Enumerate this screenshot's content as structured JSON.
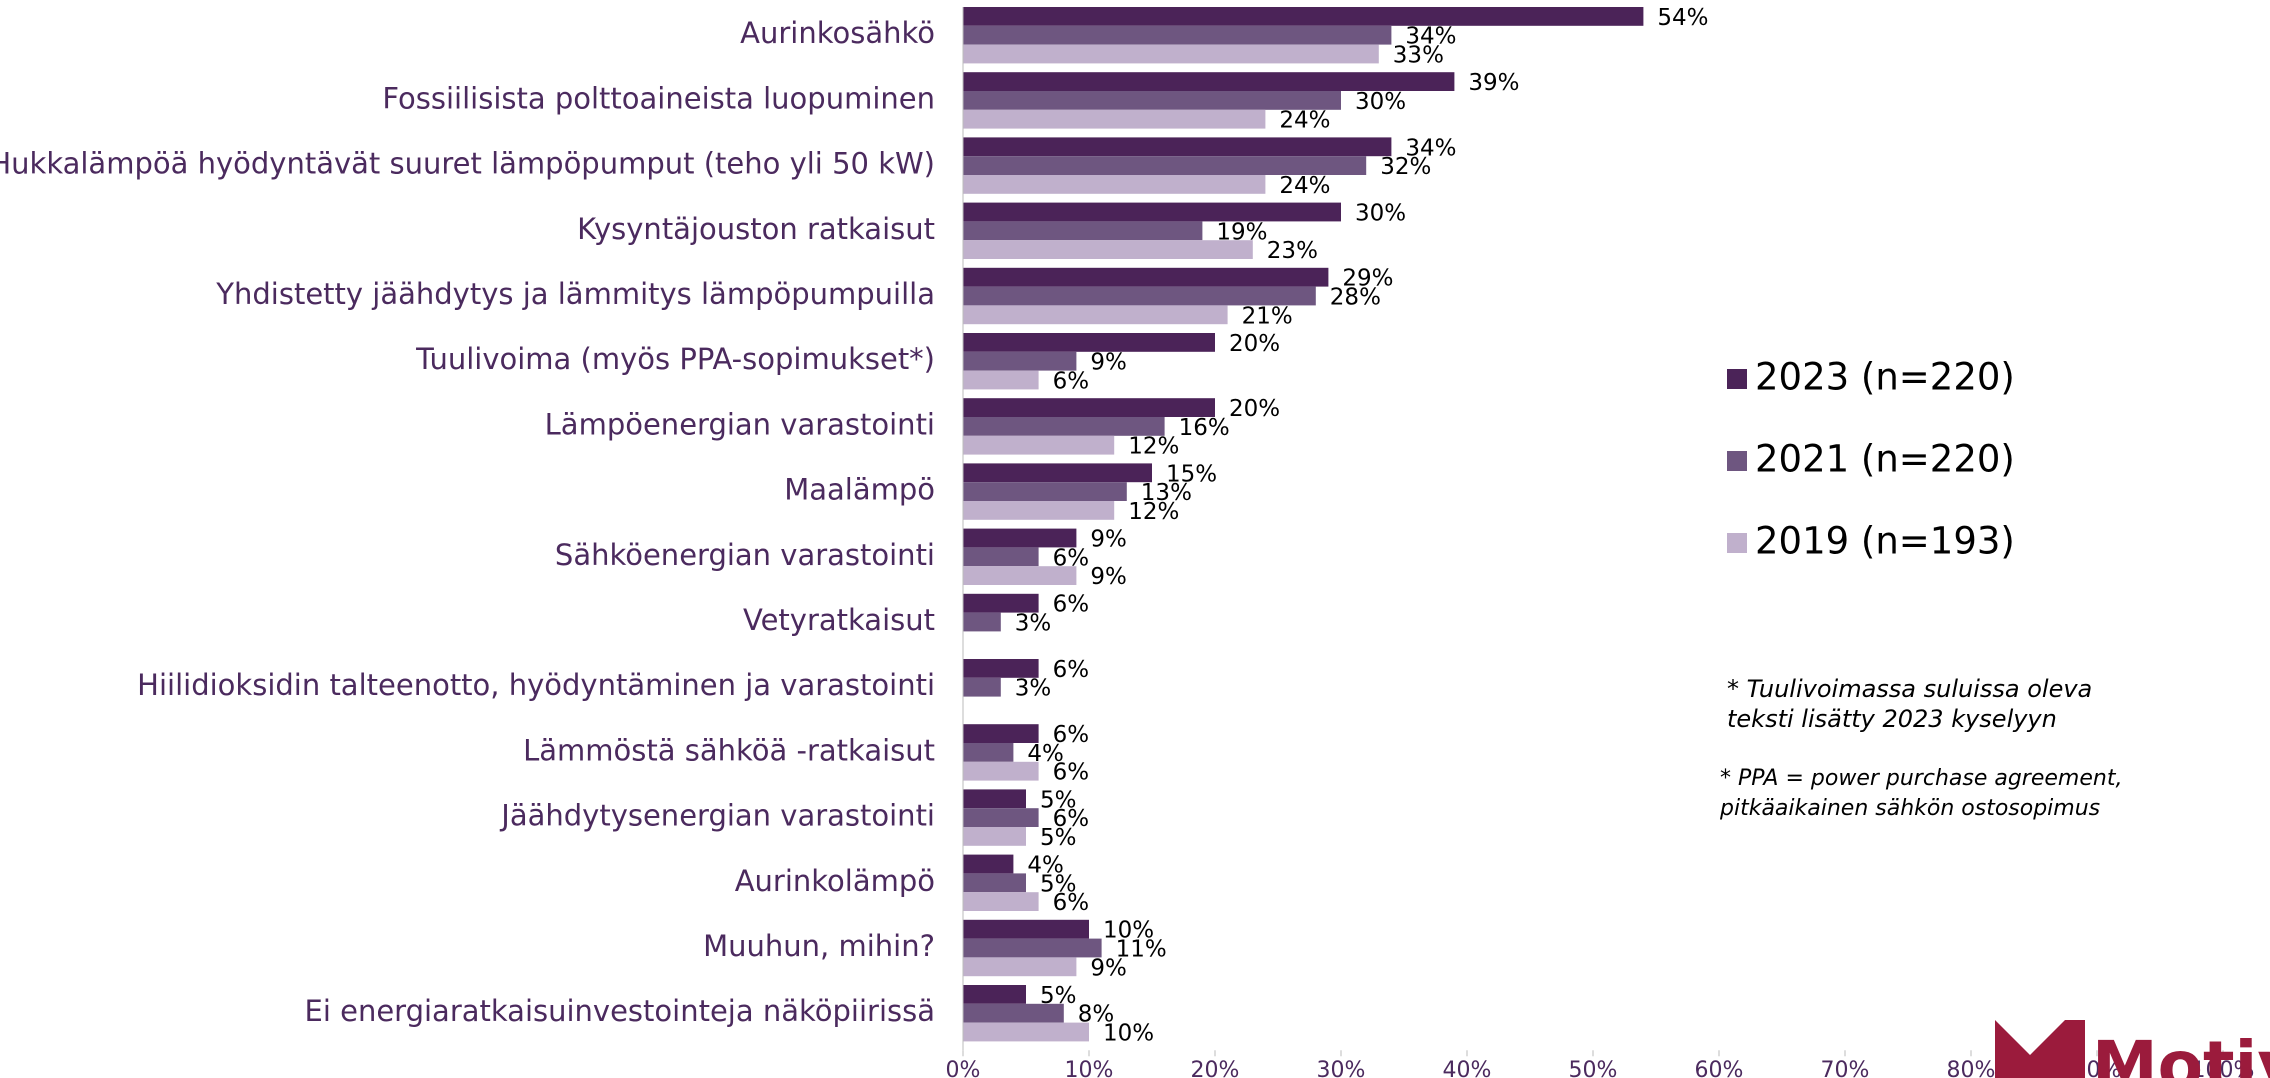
{
  "chart_data": {
    "type": "bar",
    "orientation": "horizontal",
    "categories": [
      "Aurinkosähkö",
      "Fossiilisista polttoaineista luopuminen",
      "Hukkalämpöä hyödyntävät suuret lämpöpumput (teho yli 50 kW)",
      "Kysyntäjouston ratkaisut",
      "Yhdistetty jäähdytys ja lämmitys lämpöpumpuilla",
      "Tuulivoima (myös PPA-sopimukset*)",
      "Lämpöenergian varastointi",
      "Maalämpö",
      "Sähköenergian varastointi",
      "Vetyratkaisut",
      "Hiilidioksidin talteenotto, hyödyntäminen ja varastointi",
      "Lämmöstä sähköä -ratkaisut",
      "Jäähdytysenergian varastointi",
      "Aurinkolämpö",
      "Muuhun, mihin?",
      "Ei energiaratkaisuinvestointeja näköpiirissä"
    ],
    "series": [
      {
        "name": "2023 (n=220)",
        "color": "#4b2358",
        "values": [
          54,
          39,
          34,
          30,
          29,
          20,
          20,
          15,
          9,
          6,
          6,
          6,
          5,
          4,
          10,
          5
        ],
        "value_labels": [
          "54%",
          "39%",
          "34%",
          "30%",
          "29%",
          "20%",
          "20%",
          "15%",
          "9%",
          "6%",
          "6%",
          "6%",
          "5%",
          "4%",
          "10%",
          "5%"
        ]
      },
      {
        "name": "2021 (n=220)",
        "color": "#6e5680",
        "values": [
          34,
          30,
          32,
          19,
          28,
          9,
          16,
          13,
          6,
          3,
          3,
          4,
          6,
          5,
          11,
          8
        ],
        "value_labels": [
          "34%",
          "30%",
          "32%",
          "19%",
          "28%",
          "9%",
          "16%",
          "13%",
          "6%",
          "3%",
          "3%",
          "4%",
          "6%",
          "5%",
          "11%",
          "8%"
        ]
      },
      {
        "name": "2019 (n=193)",
        "color": "#c0b0cc",
        "values": [
          33,
          24,
          24,
          23,
          21,
          6,
          12,
          12,
          9,
          null,
          null,
          6,
          5,
          6,
          9,
          10
        ],
        "value_labels": [
          "33%",
          "24%",
          "24%",
          "23%",
          "21%",
          "6%",
          "12%",
          "12%",
          "9%",
          null,
          null,
          "6%",
          "5%",
          "6%",
          "9%",
          "10%"
        ]
      }
    ],
    "xlim": [
      0,
      100
    ],
    "xticks": [
      {
        "value": 0,
        "label": "0%"
      },
      {
        "value": 10,
        "label": "10%"
      },
      {
        "value": 20,
        "label": "20%"
      },
      {
        "value": 30,
        "label": "30%"
      },
      {
        "value": 40,
        "label": "40%"
      },
      {
        "value": 50,
        "label": "50%"
      },
      {
        "value": 60,
        "label": "60%"
      },
      {
        "value": 70,
        "label": "70%"
      },
      {
        "value": 80,
        "label": "80%"
      },
      {
        "value": 90,
        "label": "90%"
      },
      {
        "value": 100,
        "label": "100%"
      }
    ],
    "legend": "right",
    "notes": [
      [
        "* Tuulivoimassa suluissa oleva",
        "teksti lisätty 2023 kyselyyn"
      ],
      [
        "* PPA = power purchase agreement,",
        "pitkäaikainen sähkön ostosopimus"
      ]
    ],
    "logo": "Motiv"
  }
}
